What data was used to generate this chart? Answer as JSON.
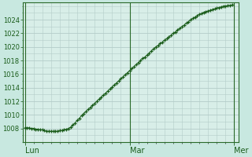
{
  "background_color": "#c8e8e0",
  "plot_bg_color": "#d8eee8",
  "grid_color": "#b4ccc8",
  "line_color": "#1a5c1a",
  "marker_color": "#1a5c1a",
  "tick_label_color": "#1a5c1a",
  "axis_color": "#2a6a2a",
  "xtick_labels": [
    "Lun",
    "Mar",
    "Mer"
  ],
  "xtick_positions": [
    0,
    48,
    96
  ],
  "ytick_values": [
    1008,
    1010,
    1012,
    1014,
    1016,
    1018,
    1020,
    1022,
    1024
  ],
  "ylim": [
    1006.0,
    1026.5
  ],
  "xlim": [
    -1,
    98
  ],
  "pressure_values": [
    1008.1,
    1008.1,
    1008.1,
    1008.0,
    1008.0,
    1007.9,
    1007.9,
    1007.8,
    1007.8,
    1007.7,
    1007.6,
    1007.6,
    1007.6,
    1007.6,
    1007.6,
    1007.6,
    1007.7,
    1007.7,
    1007.8,
    1007.9,
    1008.0,
    1008.2,
    1008.5,
    1008.8,
    1009.2,
    1009.5,
    1009.9,
    1010.2,
    1010.5,
    1010.8,
    1011.1,
    1011.4,
    1011.7,
    1012.0,
    1012.3,
    1012.6,
    1012.9,
    1013.2,
    1013.5,
    1013.8,
    1014.1,
    1014.4,
    1014.7,
    1015.0,
    1015.3,
    1015.6,
    1015.9,
    1016.2,
    1016.5,
    1016.8,
    1017.1,
    1017.4,
    1017.7,
    1018.0,
    1018.3,
    1018.5,
    1018.8,
    1019.1,
    1019.4,
    1019.7,
    1020.0,
    1020.2,
    1020.5,
    1020.7,
    1021.0,
    1021.2,
    1021.5,
    1021.7,
    1022.0,
    1022.2,
    1022.5,
    1022.7,
    1023.0,
    1023.2,
    1023.5,
    1023.7,
    1024.0,
    1024.2,
    1024.4,
    1024.6,
    1024.8,
    1024.9,
    1025.1,
    1025.2,
    1025.3,
    1025.4,
    1025.5,
    1025.6,
    1025.7,
    1025.8,
    1025.9,
    1026.0,
    1026.0,
    1026.1,
    1026.1,
    1026.2
  ]
}
